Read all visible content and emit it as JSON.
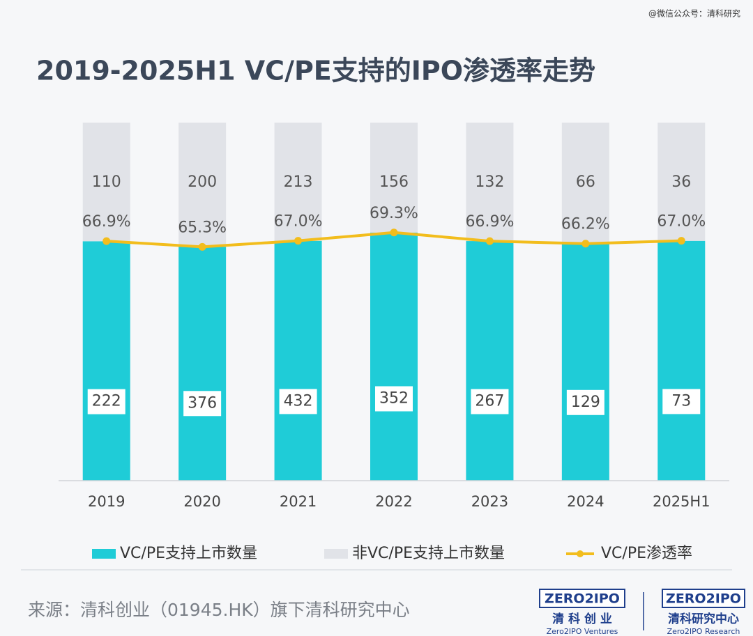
{
  "watermark": "@微信公众号：清科研究",
  "chart_data": {
    "type": "bar",
    "stacked_percent": true,
    "title": "2019-2025H1 VC/PE支持的IPO渗透率走势",
    "categories": [
      "2019",
      "2020",
      "2021",
      "2022",
      "2023",
      "2024",
      "2025H1"
    ],
    "series": [
      {
        "name": "VC/PE支持上市数量",
        "color": "#1fccd7",
        "values": [
          222,
          376,
          432,
          352,
          267,
          129,
          73
        ]
      },
      {
        "name": "非VC/PE支持上市数量",
        "color": "#e1e3e8",
        "values": [
          110,
          200,
          213,
          156,
          132,
          66,
          36
        ]
      },
      {
        "name": "VC/PE渗透率",
        "type": "line",
        "axis": "y2",
        "color": "#f2bd1d",
        "values": [
          66.9,
          65.3,
          67.0,
          69.3,
          66.9,
          66.2,
          67.0
        ],
        "value_labels": [
          "66.9%",
          "65.3%",
          "67.0%",
          "69.3%",
          "66.9%",
          "66.2%",
          "67.0%"
        ]
      }
    ],
    "y2lim": [
      0,
      100
    ]
  },
  "source": "来源：清科创业（01945.HK）旗下清科研究中心",
  "logos": [
    {
      "mark": "ZERO2IPO",
      "name": "清 科 创 业",
      "sub": "Zero2IPO Ventures"
    },
    {
      "mark": "ZERO2IPO",
      "name": "清科研究中心",
      "sub": "Zero2IPO Research"
    }
  ]
}
